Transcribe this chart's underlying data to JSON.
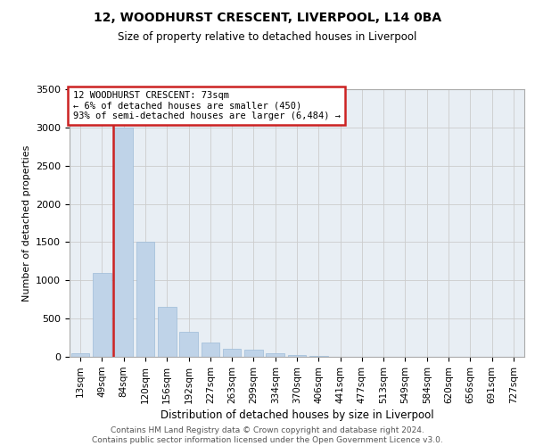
{
  "title1": "12, WOODHURST CRESCENT, LIVERPOOL, L14 0BA",
  "title2": "Size of property relative to detached houses in Liverpool",
  "xlabel": "Distribution of detached houses by size in Liverpool",
  "ylabel": "Number of detached properties",
  "categories": [
    "13sqm",
    "49sqm",
    "84sqm",
    "120sqm",
    "156sqm",
    "192sqm",
    "227sqm",
    "263sqm",
    "299sqm",
    "334sqm",
    "370sqm",
    "406sqm",
    "441sqm",
    "477sqm",
    "513sqm",
    "549sqm",
    "584sqm",
    "620sqm",
    "656sqm",
    "691sqm",
    "727sqm"
  ],
  "values": [
    50,
    1100,
    3000,
    1500,
    650,
    330,
    190,
    110,
    90,
    50,
    25,
    10,
    5,
    3,
    2,
    1,
    0,
    0,
    0,
    0,
    0
  ],
  "red_line_x": 1.5,
  "bar_color": "#bfd3e8",
  "bar_edge_color": "#9dbbd8",
  "highlight_color": "#cc2222",
  "ylim_max": 3500,
  "annotation_text": "12 WOODHURST CRESCENT: 73sqm\n← 6% of detached houses are smaller (450)\n93% of semi-detached houses are larger (6,484) →",
  "footer_line1": "Contains HM Land Registry data © Crown copyright and database right 2024.",
  "footer_line2": "Contains public sector information licensed under the Open Government Licence v3.0.",
  "bg_color": "#ffffff",
  "grid_color": "#cccccc",
  "grid_bg_color": "#e8eef4"
}
